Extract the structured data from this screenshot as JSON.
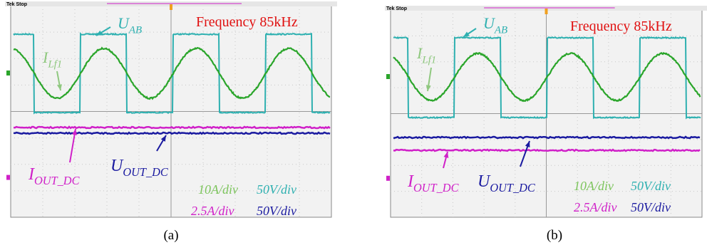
{
  "panels": [
    {
      "tek_stop": "Tek Stop",
      "frequency": "Frequency 85kHz",
      "u_ab": {
        "symbol": "U",
        "subscript": "AB"
      },
      "i_lf1": {
        "symbol": "I",
        "subscript": "Lf1"
      },
      "i_out_dc": {
        "symbol": "I",
        "subscript": "OUT_DC"
      },
      "u_out_dc": {
        "symbol": "U",
        "subscript": "OUT_DC"
      },
      "scale_green": "10A/div",
      "scale_teal": "50V/div",
      "scale_pink": "2.5A/div",
      "scale_blue": "50V/div",
      "caption": "(a)"
    },
    {
      "tek_stop": "Tek Stop",
      "frequency": "Frequency 85kHz",
      "u_ab": {
        "symbol": "U",
        "subscript": "AB"
      },
      "i_lf1": {
        "symbol": "I",
        "subscript": "Lf1"
      },
      "i_out_dc": {
        "symbol": "I",
        "subscript": "OUT_DC"
      },
      "u_out_dc": {
        "symbol": "U",
        "subscript": "OUT_DC"
      },
      "scale_green": "10A/div",
      "scale_teal": "50V/div",
      "scale_pink": "2.5A/div",
      "scale_blue": "50V/div",
      "caption": "(b)"
    }
  ]
}
